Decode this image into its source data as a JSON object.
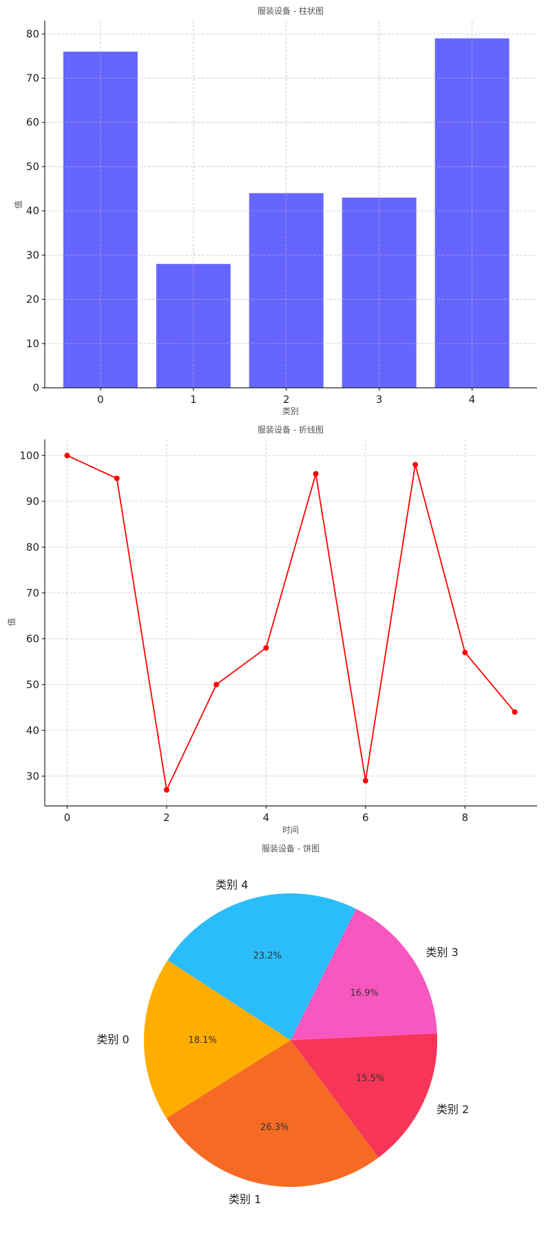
{
  "chart_data": [
    {
      "type": "bar",
      "title": "服装设备 - 柱状图",
      "xlabel": "类别",
      "ylabel": "值",
      "categories": [
        "0",
        "1",
        "2",
        "3",
        "4"
      ],
      "values": [
        76,
        28,
        44,
        43,
        79
      ],
      "ylim": [
        0,
        83
      ],
      "yticks": [
        0,
        10,
        20,
        30,
        40,
        50,
        60,
        70,
        80
      ],
      "grid": true,
      "color": "#6666ff"
    },
    {
      "type": "line",
      "title": "服装设备 - 折线图",
      "xlabel": "时间",
      "ylabel": "值",
      "x": [
        0,
        1,
        2,
        3,
        4,
        5,
        6,
        7,
        8,
        9
      ],
      "values": [
        100,
        95,
        27,
        50,
        58,
        96,
        29,
        98,
        57,
        44
      ],
      "xlim": [
        -0.45,
        9.45
      ],
      "ylim": [
        23.5,
        103.5
      ],
      "xticks": [
        0,
        2,
        4,
        6,
        8
      ],
      "yticks": [
        30,
        40,
        50,
        60,
        70,
        80,
        90,
        100
      ],
      "grid": true,
      "color": "#ff0000"
    },
    {
      "type": "pie",
      "title": "服装设备 - 饼图",
      "labels": [
        "类别 0",
        "类别 1",
        "类别 2",
        "类别 3",
        "类别 4"
      ],
      "values": [
        18.1,
        26.3,
        15.5,
        16.9,
        23.2
      ],
      "percent_labels": [
        "18.1%",
        "26.3%",
        "15.5%",
        "16.9%",
        "23.2%"
      ],
      "colors": [
        "#ffad00",
        "#f56b24",
        "#f73558",
        "#f957c0",
        "#2bbdfa"
      ],
      "start_angle_deg": 147,
      "direction": "counterclockwise"
    }
  ]
}
